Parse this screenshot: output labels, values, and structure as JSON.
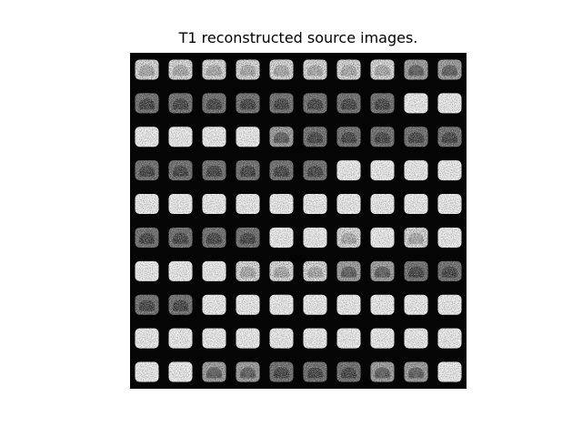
{
  "figure": {
    "title": "T1 reconstructed source images.",
    "background_color": "#ffffff",
    "mosaic_background_color": "#050505"
  },
  "mosaic": {
    "rows": 10,
    "cols": 10,
    "tile_tones": [
      [
        "bright",
        "bright",
        "bright",
        "bright",
        "bright",
        "bright",
        "bright",
        "bright",
        "mixed",
        "mixed"
      ],
      [
        "dark",
        "dark",
        "dark",
        "dark",
        "dark",
        "dark",
        "dark",
        "dark",
        "white",
        "white"
      ],
      [
        "white",
        "white",
        "white",
        "white",
        "mixed",
        "dark",
        "dark",
        "dark",
        "dark",
        "dark"
      ],
      [
        "dark",
        "dark",
        "dark",
        "dark",
        "dark",
        "dark",
        "white",
        "white",
        "white",
        "white"
      ],
      [
        "white",
        "white",
        "white",
        "white",
        "white",
        "white",
        "white",
        "white",
        "white",
        "white"
      ],
      [
        "dark",
        "dark",
        "dark",
        "dark",
        "white",
        "white",
        "bright",
        "white",
        "bright",
        "white"
      ],
      [
        "white",
        "white",
        "white",
        "bright",
        "bright",
        "bright",
        "mixed",
        "mixed",
        "dark",
        "dark"
      ],
      [
        "dark",
        "dark",
        "white",
        "white",
        "white",
        "white",
        "white",
        "white",
        "white",
        "white"
      ],
      [
        "white",
        "white",
        "white",
        "white",
        "white",
        "white",
        "white",
        "white",
        "white",
        "white"
      ],
      [
        "white",
        "white",
        "mixed",
        "mixed",
        "dark",
        "dark",
        "dark",
        "mixed",
        "mixed",
        "white"
      ]
    ]
  }
}
